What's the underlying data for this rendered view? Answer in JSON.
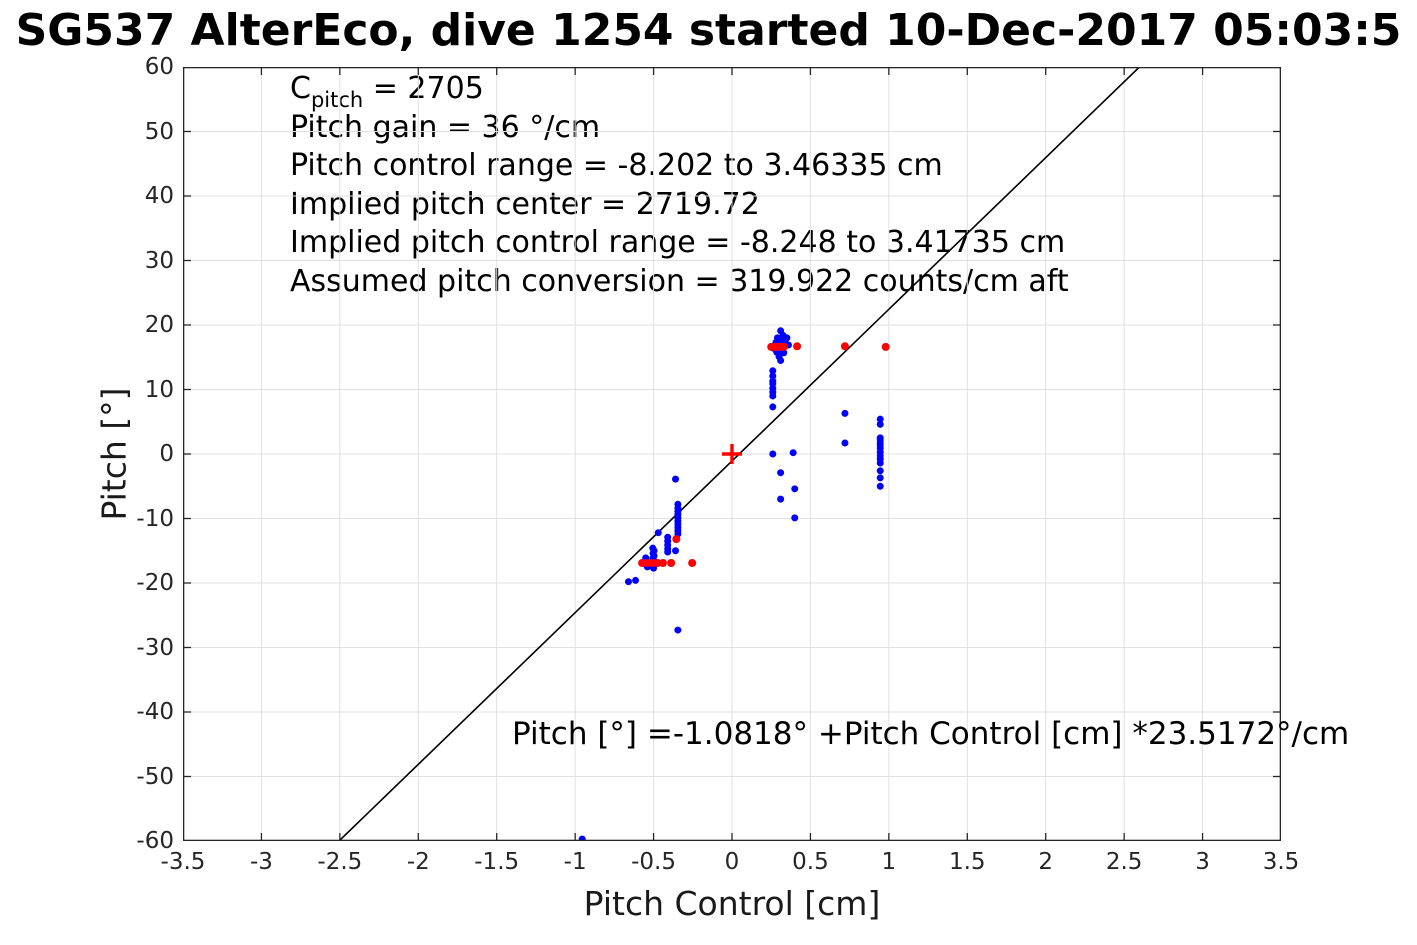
{
  "title": "SG537 AlterEco, dive 1254 started 10-Dec-2017 05:03:5",
  "annotation": {
    "cpitch_pre": "C",
    "cpitch_sub": "pitch",
    "cpitch_post": " = 2705",
    "lines": [
      "Pitch gain = 36 °/cm",
      "Pitch control range = -8.202 to 3.46335 cm",
      "Implied pitch center = 2719.72",
      "Implied pitch control range = -8.248 to 3.41735 cm",
      "Assumed pitch conversion = 319.922 counts/cm aft"
    ]
  },
  "equation": "Pitch [°] =-1.0818° +Pitch Control [cm] *23.5172°/cm",
  "colors": {
    "blue_marker": "#0000ff",
    "red_marker": "#ff0000",
    "fit_line": "#000000",
    "grid": "#e0e0e0",
    "axis_box": "#262626"
  },
  "chart_data": {
    "type": "scatter",
    "title": "SG537 AlterEco, dive 1254 started 10-Dec-2017 05:03:5",
    "xlabel": "Pitch Control [cm]",
    "ylabel": "Pitch [°]",
    "xlim": [
      -3.5,
      3.5
    ],
    "ylim": [
      -60,
      60
    ],
    "grid": true,
    "legend_position": "none",
    "xticks": [
      -3.5,
      -3,
      -2.5,
      -2,
      -1.5,
      -1,
      -0.5,
      0,
      0.5,
      1,
      1.5,
      2,
      2.5,
      3,
      3.5
    ],
    "xtick_labels": [
      "-3.5",
      "-3",
      "-2.5",
      "-2",
      "-1.5",
      "-1",
      "-0.5",
      "0",
      "0.5",
      "1",
      "1.5",
      "2",
      "2.5",
      "3",
      "3.5"
    ],
    "yticks": [
      -60,
      -50,
      -40,
      -30,
      -20,
      -10,
      0,
      10,
      20,
      30,
      40,
      50,
      60
    ],
    "ytick_labels": [
      "-60",
      "-50",
      "-40",
      "-30",
      "-20",
      "-10",
      "0",
      "10",
      "20",
      "30",
      "40",
      "50",
      "60"
    ],
    "fit_line": {
      "intercept_deg": -1.0818,
      "slope_deg_per_cm": 23.5172
    },
    "series": [
      {
        "name": "observed-pitch-blue-dots",
        "marker": "dot",
        "color": "#0000ff",
        "radius": 3.5,
        "points": [
          [
            0.31,
            19.1
          ],
          [
            0.325,
            18.4
          ],
          [
            0.29,
            18.0
          ],
          [
            0.305,
            17.9
          ],
          [
            0.33,
            17.8
          ],
          [
            0.35,
            18.0
          ],
          [
            0.28,
            17.3
          ],
          [
            0.315,
            17.1
          ],
          [
            0.34,
            17.2
          ],
          [
            0.36,
            16.9
          ],
          [
            0.265,
            16.4
          ],
          [
            0.285,
            15.8
          ],
          [
            0.305,
            15.5
          ],
          [
            0.33,
            15.7
          ],
          [
            0.3,
            15.1
          ],
          [
            0.31,
            14.5
          ],
          [
            0.26,
            12.9
          ],
          [
            0.26,
            12.1
          ],
          [
            0.26,
            11.3
          ],
          [
            0.26,
            10.9
          ],
          [
            0.26,
            10.2
          ],
          [
            0.26,
            9.6
          ],
          [
            0.26,
            9.0
          ],
          [
            0.26,
            7.3
          ],
          [
            0.26,
            0.0
          ],
          [
            0.39,
            0.2
          ],
          [
            0.31,
            -2.9
          ],
          [
            0.4,
            -5.4
          ],
          [
            0.31,
            -7.0
          ],
          [
            0.4,
            -9.9
          ],
          [
            0.72,
            6.3
          ],
          [
            0.72,
            1.7
          ],
          [
            0.945,
            5.4
          ],
          [
            0.945,
            4.6
          ],
          [
            0.945,
            2.5
          ],
          [
            0.945,
            2.2
          ],
          [
            0.945,
            1.7
          ],
          [
            0.945,
            1.4
          ],
          [
            0.945,
            0.9
          ],
          [
            0.945,
            0.3
          ],
          [
            0.945,
            -0.3
          ],
          [
            0.945,
            -0.8
          ],
          [
            0.945,
            -1.4
          ],
          [
            0.945,
            -2.6
          ],
          [
            0.945,
            -3.7
          ],
          [
            0.945,
            -5.0
          ],
          [
            -0.345,
            -7.8
          ],
          [
            -0.345,
            -8.4
          ],
          [
            -0.345,
            -8.9
          ],
          [
            -0.345,
            -9.4
          ],
          [
            -0.345,
            -9.9
          ],
          [
            -0.345,
            -10.4
          ],
          [
            -0.345,
            -10.9
          ],
          [
            -0.345,
            -11.4
          ],
          [
            -0.345,
            -11.9
          ],
          [
            -0.345,
            -12.4
          ],
          [
            -0.47,
            -12.2
          ],
          [
            -0.41,
            -12.9
          ],
          [
            -0.41,
            -13.5
          ],
          [
            -0.41,
            -14.1
          ],
          [
            -0.41,
            -14.7
          ],
          [
            -0.41,
            -15.2
          ],
          [
            -0.36,
            -15.0
          ],
          [
            -0.505,
            -14.6
          ],
          [
            -0.497,
            -15.0
          ],
          [
            -0.503,
            -15.4
          ],
          [
            -0.497,
            -15.8
          ],
          [
            -0.505,
            -16.2
          ],
          [
            -0.497,
            -16.6
          ],
          [
            -0.503,
            -17.0
          ],
          [
            -0.5,
            -17.4
          ],
          [
            -0.5,
            -17.7
          ],
          [
            -0.55,
            -16.1
          ],
          [
            -0.555,
            -16.6
          ],
          [
            -0.545,
            -17.2
          ],
          [
            -0.54,
            -17.5
          ],
          [
            -0.66,
            -19.8
          ],
          [
            -0.615,
            -19.6
          ],
          [
            -0.36,
            -3.9
          ],
          [
            -0.345,
            -27.3
          ],
          [
            -0.955,
            -59.7
          ]
        ]
      },
      {
        "name": "implied-pitch-red-dots",
        "marker": "dot",
        "color": "#ff0000",
        "radius": 4,
        "points": [
          [
            0.25,
            16.6
          ],
          [
            0.27,
            16.6
          ],
          [
            0.29,
            16.6
          ],
          [
            0.31,
            16.6
          ],
          [
            0.33,
            16.6
          ],
          [
            0.415,
            16.7
          ],
          [
            0.72,
            16.7
          ],
          [
            0.98,
            16.6
          ],
          [
            -0.573,
            -16.9
          ],
          [
            -0.54,
            -16.9
          ],
          [
            -0.507,
            -16.9
          ],
          [
            -0.474,
            -16.9
          ],
          [
            -0.44,
            -16.9
          ],
          [
            -0.388,
            -16.9
          ],
          [
            -0.254,
            -16.9
          ],
          [
            -0.355,
            -13.2
          ]
        ]
      },
      {
        "name": "pitch-center-red-plus",
        "marker": "plus",
        "color": "#ff0000",
        "radius": 10,
        "points": [
          [
            0,
            0
          ]
        ]
      }
    ]
  }
}
